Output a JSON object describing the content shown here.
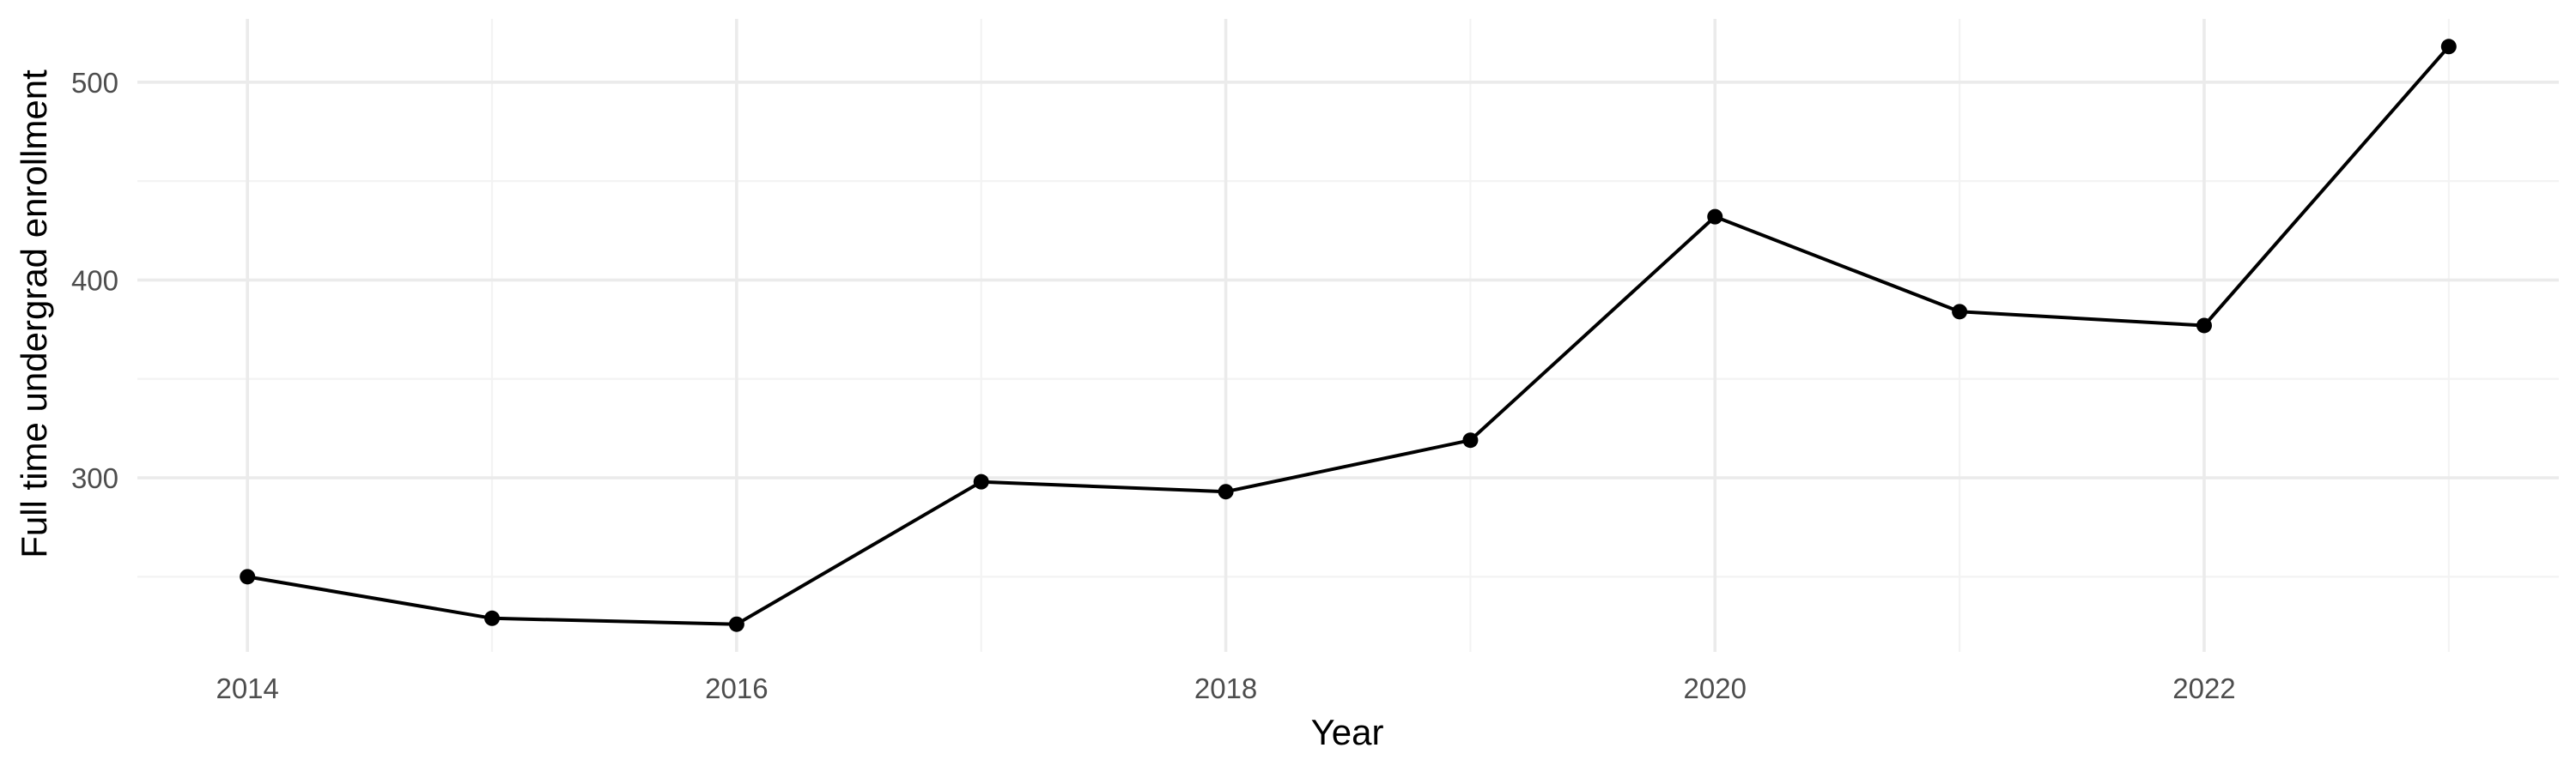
{
  "chart_data": {
    "type": "line",
    "xlabel": "Year",
    "ylabel": "Full time undergrad enrollment",
    "x": [
      2014,
      2015,
      2016,
      2017,
      2018,
      2019,
      2020,
      2021,
      2022,
      2023
    ],
    "y": [
      250,
      229,
      226,
      298,
      293,
      319,
      432,
      384,
      377,
      518
    ],
    "xlim": [
      2013.55,
      2023.45
    ],
    "ylim": [
      212,
      532
    ],
    "x_ticks": [
      2014,
      2016,
      2018,
      2020,
      2022
    ],
    "x_tick_labels": [
      "2014",
      "2016",
      "2018",
      "2020",
      "2022"
    ],
    "y_ticks": [
      300,
      400,
      500
    ],
    "y_tick_labels": [
      "300",
      "400",
      "500"
    ],
    "grid": true,
    "line_color": "#000000",
    "point_color": "#000000"
  }
}
